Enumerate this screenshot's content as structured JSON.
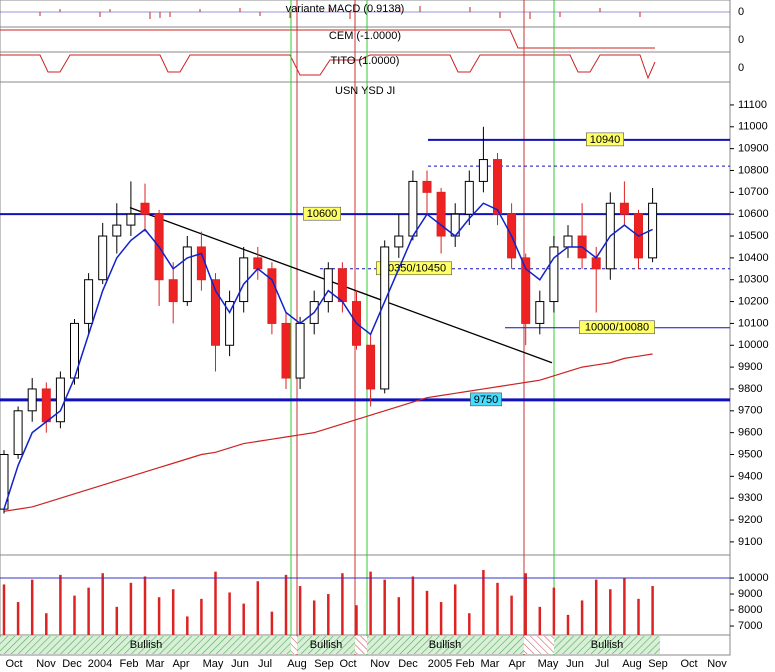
{
  "chart_data": {
    "type": "candlestick",
    "title": "USN YSD JI",
    "indicators": [
      "variante MACD (0.9138)",
      "CEM (-1.0000)",
      "TITO (1.0000)"
    ],
    "indicator_zero": [
      0,
      0,
      0
    ],
    "x_labels": [
      "Oct",
      "Nov",
      "Dec",
      "2004",
      "Feb",
      "Mar",
      "Apr",
      "May",
      "Jun",
      "Jul",
      "Aug",
      "Sep",
      "Oct",
      "Nov",
      "Dec",
      "2005",
      "Feb",
      "Mar",
      "Apr",
      "May",
      "Jun",
      "Jul",
      "Aug",
      "Sep",
      "Oct",
      "Nov"
    ],
    "candles": [
      [
        9250,
        9520,
        9230,
        9500
      ],
      [
        9500,
        9720,
        9480,
        9700
      ],
      [
        9700,
        9850,
        9650,
        9800
      ],
      [
        9800,
        9830,
        9600,
        9650
      ],
      [
        9650,
        9880,
        9620,
        9850
      ],
      [
        9850,
        10120,
        9820,
        10100
      ],
      [
        10100,
        10330,
        10050,
        10300
      ],
      [
        10300,
        10560,
        10280,
        10500
      ],
      [
        10500,
        10650,
        10420,
        10550
      ],
      [
        10550,
        10750,
        10500,
        10600
      ],
      [
        10650,
        10740,
        10520,
        10600
      ],
      [
        10600,
        10620,
        10180,
        10300
      ],
      [
        10300,
        10380,
        10100,
        10200
      ],
      [
        10200,
        10500,
        10180,
        10450
      ],
      [
        10450,
        10520,
        10250,
        10300
      ],
      [
        10300,
        10330,
        9880,
        10000
      ],
      [
        10000,
        10250,
        9950,
        10200
      ],
      [
        10200,
        10450,
        10150,
        10400
      ],
      [
        10400,
        10450,
        10300,
        10350
      ],
      [
        10350,
        10380,
        10050,
        10100
      ],
      [
        10100,
        10150,
        9800,
        9850
      ],
      [
        9850,
        10130,
        9800,
        10100
      ],
      [
        10100,
        10250,
        10050,
        10200
      ],
      [
        10200,
        10380,
        10150,
        10350
      ],
      [
        10350,
        10380,
        10150,
        10200
      ],
      [
        10200,
        10250,
        9980,
        10000
      ],
      [
        10000,
        10050,
        9720,
        9800
      ],
      [
        9800,
        10480,
        9780,
        10450
      ],
      [
        10450,
        10600,
        10400,
        10500
      ],
      [
        10500,
        10800,
        10480,
        10750
      ],
      [
        10750,
        10800,
        10600,
        10700
      ],
      [
        10700,
        10720,
        10420,
        10500
      ],
      [
        10500,
        10650,
        10450,
        10600
      ],
      [
        10600,
        10800,
        10550,
        10750
      ],
      [
        10750,
        11000,
        10700,
        10850
      ],
      [
        10850,
        10880,
        10550,
        10600
      ],
      [
        10600,
        10650,
        10350,
        10400
      ],
      [
        10400,
        10420,
        10000,
        10100
      ],
      [
        10100,
        10250,
        10050,
        10200
      ],
      [
        10200,
        10500,
        10150,
        10450
      ],
      [
        10450,
        10550,
        10400,
        10500
      ],
      [
        10500,
        10650,
        10350,
        10400
      ],
      [
        10400,
        10450,
        10150,
        10350
      ],
      [
        10350,
        10700,
        10300,
        10650
      ],
      [
        10650,
        10750,
        10550,
        10600
      ],
      [
        10600,
        10620,
        10350,
        10400
      ],
      [
        10400,
        10720,
        10380,
        10650
      ]
    ],
    "ma_short": [
      9250,
      9450,
      9600,
      9650,
      9700,
      9850,
      10050,
      10250,
      10400,
      10480,
      10530,
      10450,
      10350,
      10400,
      10420,
      10250,
      10150,
      10280,
      10350,
      10300,
      10150,
      10100,
      10150,
      10250,
      10200,
      10100,
      10050,
      10200,
      10350,
      10500,
      10600,
      10550,
      10500,
      10580,
      10650,
      10620,
      10500,
      10350,
      10300,
      10400,
      10450,
      10450,
      10400,
      10500,
      10550,
      10500,
      10530
    ],
    "ma_long": [
      9240,
      9250,
      9260,
      9280,
      9300,
      9320,
      9340,
      9360,
      9380,
      9400,
      9420,
      9440,
      9460,
      9480,
      9500,
      9510,
      9530,
      9550,
      9560,
      9570,
      9580,
      9590,
      9600,
      9620,
      9640,
      9660,
      9680,
      9700,
      9720,
      9740,
      9760,
      9770,
      9780,
      9790,
      9800,
      9810,
      9820,
      9830,
      9840,
      9860,
      9880,
      9900,
      9910,
      9920,
      9940,
      9950,
      9960
    ],
    "ylim": [
      9040,
      11205
    ],
    "yticks": [
      9100,
      9200,
      9300,
      9400,
      9500,
      9600,
      9700,
      9800,
      9900,
      10000,
      10100,
      10200,
      10300,
      10400,
      10500,
      10600,
      10700,
      10800,
      10900,
      11000,
      11100
    ],
    "levels": [
      {
        "value": 10600,
        "label": "10600"
      },
      {
        "value": 9750,
        "label": "9750"
      },
      {
        "value": 10940,
        "label": "10940"
      },
      {
        "value": 10080,
        "label": "10000/10080"
      },
      {
        "value": 10350,
        "label": "10350/10450"
      },
      {
        "value": 10820
      }
    ],
    "trendline": [
      10630,
      9920
    ],
    "volume": [
      9600,
      8500,
      9900,
      7800,
      10200,
      8900,
      9400,
      10300,
      8200,
      9700,
      10100,
      8800,
      9300,
      7600,
      8700,
      10400,
      9100,
      8400,
      9800,
      7900,
      10200,
      9500,
      8600,
      9000,
      10300,
      8300,
      10400,
      9900,
      8800,
      10100,
      9200,
      8500,
      9600,
      7800,
      10500,
      9700,
      8900,
      10300,
      8200,
      9400,
      7700,
      8600,
      9900,
      9300,
      10000,
      8700,
      9500
    ],
    "vol_ylim": [
      6440,
      11440
    ],
    "vol_yticks": [
      7000,
      8000,
      9000,
      10000
    ],
    "band_labels": [
      "Bullish",
      "Bullish",
      "Bullish",
      "Bullish"
    ]
  }
}
